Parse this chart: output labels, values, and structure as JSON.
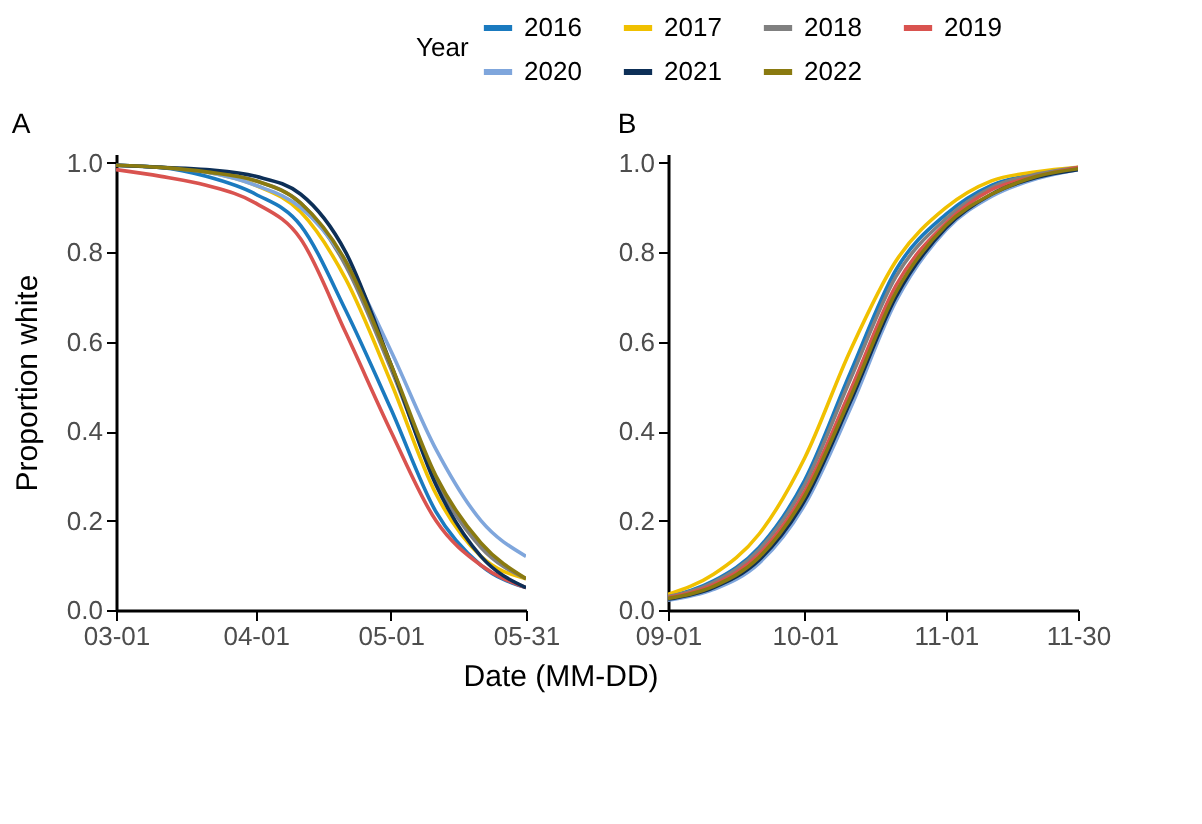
{
  "chart_data": [
    {
      "type": "line",
      "title": "A",
      "ylabel": "Proportion white",
      "xlabel": "Date (MM-DD)",
      "legend_title": "Year",
      "legend": "top",
      "x": [
        "--03-01",
        "--03-11",
        "--03-21",
        "--04-01",
        "--04-11",
        "--04-21",
        "--05-01",
        "--05-11",
        "--05-21",
        "--05-31"
      ],
      "xlim": [
        "--03-01",
        "--05-31"
      ],
      "xticks": [
        {
          "value": "--03-01",
          "label": "03-01"
        },
        {
          "value": "--04-01",
          "label": "04-01"
        },
        {
          "value": "--05-01",
          "label": "05-01"
        },
        {
          "value": "--05-31",
          "label": "05-31"
        }
      ],
      "ylim": [
        0,
        1.02
      ],
      "yticks": [
        {
          "value": 0,
          "label": "0.0"
        },
        {
          "value": 0.2,
          "label": "0.2"
        },
        {
          "value": 0.4,
          "label": "0.4"
        },
        {
          "value": 0.6,
          "label": "0.6"
        },
        {
          "value": 0.8,
          "label": "0.8"
        },
        {
          "value": 1,
          "label": "1.0"
        }
      ],
      "series": [
        {
          "name": "2016",
          "color": "#1a7abf",
          "values": [
            0.995,
            0.99,
            0.97,
            0.93,
            0.86,
            0.67,
            0.45,
            0.22,
            0.1,
            0.05
          ]
        },
        {
          "name": "2017",
          "color": "#f0c000",
          "values": [
            null,
            null,
            0.98,
            0.95,
            0.89,
            0.74,
            0.51,
            0.26,
            0.12,
            0.07
          ]
        },
        {
          "name": "2018",
          "color": "#808080",
          "values": [
            0.995,
            0.99,
            0.98,
            0.96,
            0.91,
            0.77,
            0.54,
            0.29,
            0.14,
            0.07
          ]
        },
        {
          "name": "2019",
          "color": "#d9534f",
          "values": [
            0.985,
            0.97,
            0.95,
            0.91,
            0.83,
            0.62,
            0.4,
            0.2,
            0.1,
            0.05
          ]
        },
        {
          "name": "2020",
          "color": "#7fa6dc",
          "values": [
            0.995,
            0.99,
            0.98,
            0.95,
            0.9,
            0.78,
            0.58,
            0.36,
            0.2,
            0.12
          ]
        },
        {
          "name": "2021",
          "color": "#0d2f57",
          "values": [
            0.995,
            0.99,
            0.985,
            0.97,
            0.93,
            0.8,
            0.55,
            0.28,
            0.12,
            0.05
          ]
        },
        {
          "name": "2022",
          "color": "#8a7a10",
          "values": [
            0.995,
            0.99,
            0.98,
            0.96,
            0.91,
            0.78,
            0.55,
            0.3,
            0.15,
            0.07
          ]
        }
      ]
    },
    {
      "type": "line",
      "title": "B",
      "x": [
        "--09-01",
        "--09-11",
        "--09-21",
        "--10-01",
        "--10-11",
        "--10-21",
        "--11-01",
        "--11-11",
        "--11-21",
        "--11-30"
      ],
      "xlim": [
        "--09-01",
        "--11-30"
      ],
      "xticks": [
        {
          "value": "--09-01",
          "label": "09-01"
        },
        {
          "value": "--10-01",
          "label": "10-01"
        },
        {
          "value": "--11-01",
          "label": "11-01"
        },
        {
          "value": "--11-30",
          "label": "11-30"
        }
      ],
      "ylim": [
        0,
        1.02
      ],
      "yticks": [
        {
          "value": 0,
          "label": "0.0"
        },
        {
          "value": 0.2,
          "label": "0.2"
        },
        {
          "value": 0.4,
          "label": "0.4"
        },
        {
          "value": 0.6,
          "label": "0.6"
        },
        {
          "value": 0.8,
          "label": "0.8"
        },
        {
          "value": 1,
          "label": "1.0"
        }
      ],
      "series": [
        {
          "name": "2016",
          "color": "#1a7abf",
          "values": [
            0.03,
            0.065,
            0.14,
            0.29,
            0.53,
            0.76,
            0.885,
            0.95,
            0.975,
            0.99
          ]
        },
        {
          "name": "2017",
          "color": "#f0c000",
          "values": [
            0.035,
            0.08,
            0.17,
            0.34,
            0.58,
            0.78,
            0.9,
            0.96,
            0.98,
            0.99
          ]
        },
        {
          "name": "2018",
          "color": "#808080",
          "values": [
            0.03,
            0.062,
            0.135,
            0.28,
            0.515,
            0.745,
            0.875,
            0.945,
            0.975,
            0.99
          ]
        },
        {
          "name": "2019",
          "color": "#d9534f",
          "values": [
            0.028,
            0.057,
            0.125,
            0.265,
            0.49,
            0.725,
            0.865,
            0.94,
            0.97,
            0.99
          ]
        },
        {
          "name": "2020",
          "color": "#7fa6dc",
          "values": [
            0.022,
            0.046,
            0.105,
            0.235,
            0.45,
            0.69,
            0.85,
            0.925,
            0.965,
            0.985
          ]
        },
        {
          "name": "2021",
          "color": "#0d2f57",
          "values": [
            0.024,
            0.05,
            0.112,
            0.245,
            0.465,
            0.7,
            0.855,
            0.93,
            0.968,
            0.985
          ]
        },
        {
          "name": "2022",
          "color": "#8a7a10",
          "values": [
            0.026,
            0.053,
            0.118,
            0.255,
            0.475,
            0.71,
            0.86,
            0.93,
            0.97,
            0.987
          ]
        }
      ]
    }
  ]
}
